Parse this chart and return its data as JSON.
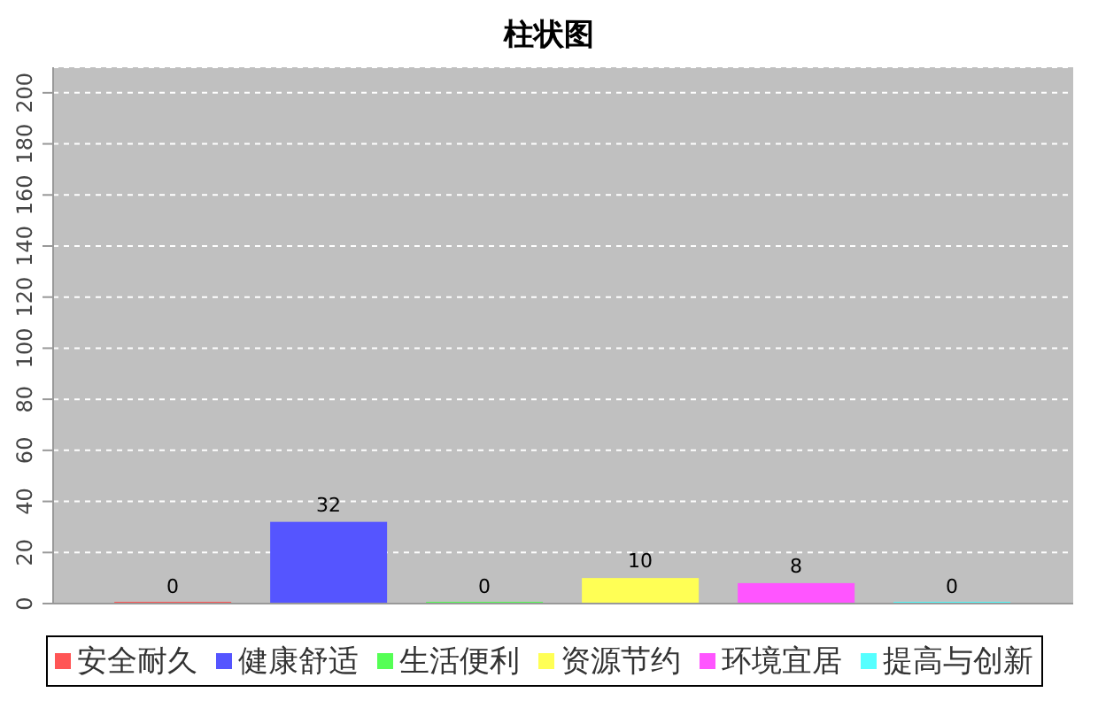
{
  "chart_data": {
    "type": "bar",
    "title": "柱状图",
    "categories": [
      null
    ],
    "series": [
      {
        "name": "安全耐久",
        "color": "#ff5555",
        "values": [
          0
        ]
      },
      {
        "name": "健康舒适",
        "color": "#5555ff",
        "values": [
          32
        ]
      },
      {
        "name": "生活便利",
        "color": "#55ff55",
        "values": [
          0
        ]
      },
      {
        "name": "资源节约",
        "color": "#ffff55",
        "values": [
          10
        ]
      },
      {
        "name": "环境宜居",
        "color": "#ff55ff",
        "values": [
          8
        ]
      },
      {
        "name": "提高与创新",
        "color": "#55ffff",
        "values": [
          0
        ]
      }
    ],
    "ylim": [
      0,
      210
    ],
    "yticks": [
      0,
      20,
      40,
      60,
      80,
      100,
      120,
      140,
      160,
      180,
      200
    ],
    "grid": "y",
    "legend": "bottom",
    "data_labels": true
  }
}
